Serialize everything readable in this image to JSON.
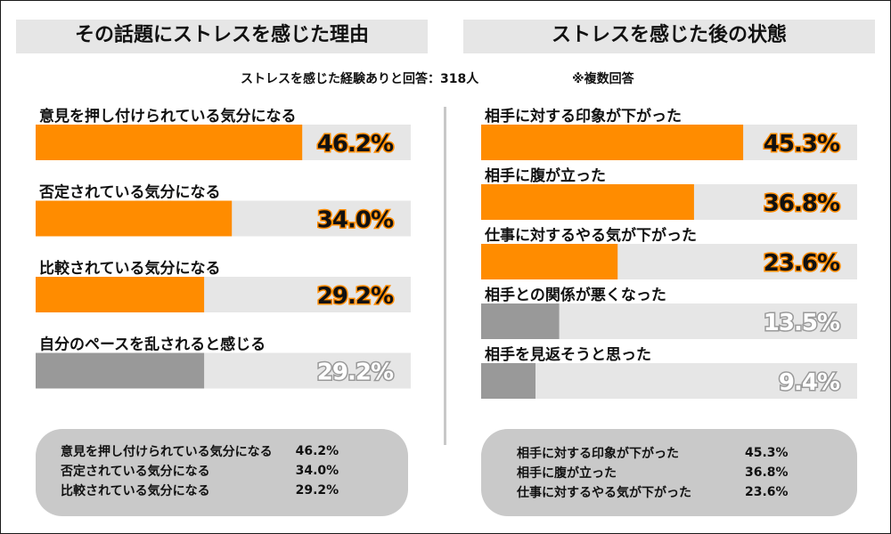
{
  "left_title": "その話題にストレスを感じた理由",
  "right_title": "ストレスを感じた後の状態",
  "subtitle": "ストレスを感じた経験ありと回答：318人",
  "note": "※複数回答",
  "colors": {
    "highlight": "#ff8c00",
    "muted": "#999999",
    "track": "#e6e6e6",
    "summary_bg": "#c9c9c9"
  },
  "chart_data": [
    {
      "type": "bar",
      "title": "その話題にストレスを感じた理由",
      "unit": "%",
      "categories": [
        "意見を押し付けられている気分になる",
        "否定されている気分になる",
        "比較されている気分になる",
        "自分のペースを乱されると感じる"
      ],
      "values": [
        46.2,
        34.0,
        29.2,
        29.2
      ],
      "labels": [
        "46.2%",
        "34.0%",
        "29.2%",
        "29.2%"
      ],
      "highlight": [
        true,
        true,
        true,
        false
      ],
      "xlim": [
        0,
        65
      ]
    },
    {
      "type": "bar",
      "title": "ストレスを感じた後の状態",
      "unit": "%",
      "categories": [
        "相手に対する印象が下がった",
        "相手に腹が立った",
        "仕事に対するやる気が下がった",
        "相手との関係が悪くなった",
        "相手を見返そうと思った"
      ],
      "values": [
        45.3,
        36.8,
        23.6,
        13.5,
        9.4
      ],
      "labels": [
        "45.3%",
        "36.8%",
        "23.6%",
        "13.5%",
        "9.4%"
      ],
      "highlight": [
        true,
        true,
        true,
        false,
        false
      ],
      "xlim": [
        0,
        65
      ]
    }
  ],
  "summary_left": [
    {
      "label": "意見を押し付けられている気分になる",
      "value": "46.2%"
    },
    {
      "label": "否定されている気分になる",
      "value": "34.0%"
    },
    {
      "label": "比較されている気分になる",
      "value": "29.2%"
    }
  ],
  "summary_right": [
    {
      "label": "相手に対する印象が下がった",
      "value": "45.3%"
    },
    {
      "label": "相手に腹が立った",
      "value": "36.8%"
    },
    {
      "label": "仕事に対するやる気が下がった",
      "value": "23.6%"
    }
  ]
}
